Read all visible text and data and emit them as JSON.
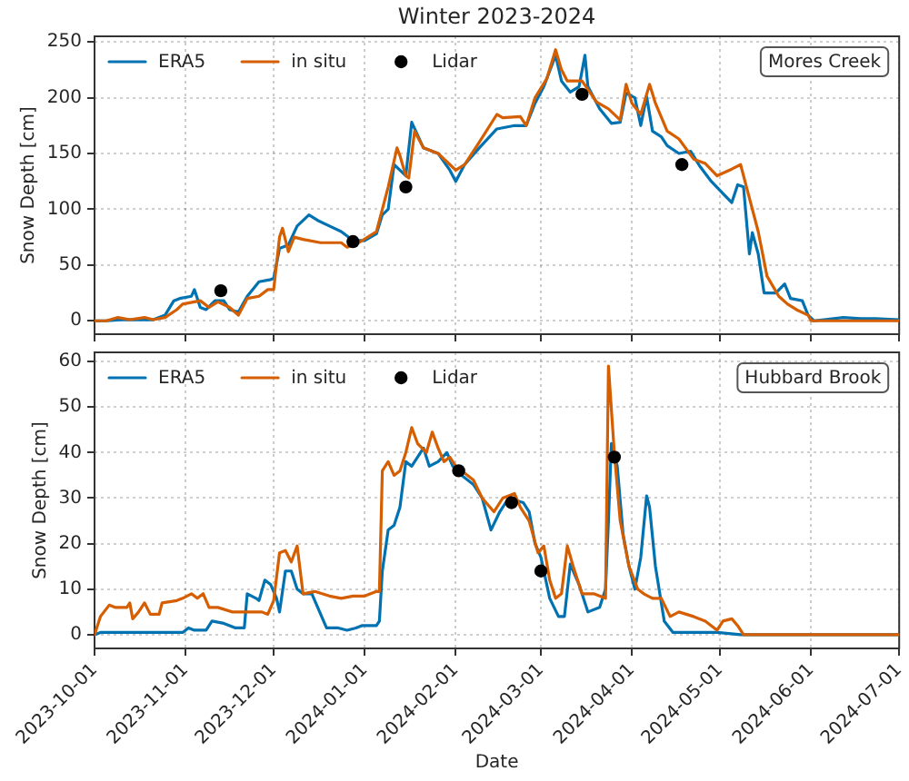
{
  "chart_data": [
    {
      "type": "line",
      "title": "Winter 2023-2024",
      "ylabel": "Snow Depth [cm]",
      "xlim": [
        "2023-10-01",
        "2024-07-01"
      ],
      "xticks": [
        "2023-10-01",
        "2023-11-01",
        "2023-12-01",
        "2024-01-01",
        "2024-02-01",
        "2024-03-01",
        "2024-04-01",
        "2024-05-01",
        "2024-06-01",
        "2024-07-01"
      ],
      "ylim": [
        -12,
        255
      ],
      "yticks": [
        0,
        50,
        100,
        150,
        200,
        250
      ],
      "grid": true,
      "legend": "top left",
      "tick_labels": "y",
      "marker": "none",
      "line_style": "solid",
      "annotations": [
        "Mores Creek"
      ],
      "series": [
        {
          "name": "ERA5",
          "color": "#0072b2",
          "x": [
            "2023-10-01",
            "2023-10-05",
            "2023-10-10",
            "2023-10-21",
            "2023-10-25",
            "2023-10-28",
            "2023-10-30",
            "2023-11-03",
            "2023-11-04",
            "2023-11-06",
            "2023-11-08",
            "2023-11-11",
            "2023-11-14",
            "2023-11-16",
            "2023-11-19",
            "2023-11-22",
            "2023-11-26",
            "2023-11-30",
            "2023-12-01",
            "2023-12-03",
            "2023-12-06",
            "2023-12-09",
            "2023-12-13",
            "2023-12-16",
            "2023-12-20",
            "2023-12-24",
            "2023-12-28",
            "2024-01-01",
            "2024-01-05",
            "2024-01-07",
            "2024-01-09",
            "2024-01-11",
            "2024-01-13",
            "2024-01-15",
            "2024-01-17",
            "2024-01-21",
            "2024-01-26",
            "2024-01-30",
            "2024-02-01",
            "2024-02-04",
            "2024-02-09",
            "2024-02-15",
            "2024-02-21",
            "2024-02-25",
            "2024-02-28",
            "2024-03-02",
            "2024-03-06",
            "2024-03-08",
            "2024-03-11",
            "2024-03-14",
            "2024-03-16",
            "2024-03-17",
            "2024-03-21",
            "2024-03-25",
            "2024-03-28",
            "2024-03-30",
            "2024-04-02",
            "2024-04-04",
            "2024-04-06",
            "2024-04-08",
            "2024-04-11",
            "2024-04-13",
            "2024-04-17",
            "2024-04-21",
            "2024-04-24",
            "2024-04-28",
            "2024-05-02",
            "2024-05-05",
            "2024-05-07",
            "2024-05-09",
            "2024-05-11",
            "2024-05-12",
            "2024-05-14",
            "2024-05-16",
            "2024-05-20",
            "2024-05-23",
            "2024-05-25",
            "2024-05-29",
            "2024-05-31",
            "2024-06-02",
            "2024-06-12",
            "2024-06-18",
            "2024-06-23",
            "2024-07-01"
          ],
          "values": [
            0,
            0,
            1,
            1,
            5,
            18,
            20,
            22,
            28,
            12,
            10,
            18,
            18,
            10,
            8,
            22,
            35,
            37,
            38,
            65,
            68,
            85,
            95,
            90,
            85,
            80,
            72,
            72,
            78,
            95,
            100,
            140,
            135,
            130,
            178,
            155,
            150,
            135,
            125,
            140,
            155,
            172,
            175,
            175,
            195,
            210,
            238,
            215,
            205,
            210,
            238,
            210,
            190,
            177,
            178,
            204,
            200,
            175,
            201,
            170,
            165,
            157,
            150,
            152,
            139,
            125,
            114,
            106,
            122,
            120,
            60,
            79,
            60,
            25,
            25,
            33,
            20,
            18,
            5,
            0,
            3,
            2,
            2,
            1
          ]
        },
        {
          "name": "in situ",
          "color": "#d55e00",
          "x": [
            "2023-10-01",
            "2023-10-05",
            "2023-10-09",
            "2023-10-13",
            "2023-10-18",
            "2023-10-21",
            "2023-10-25",
            "2023-10-29",
            "2023-10-31",
            "2023-11-06",
            "2023-11-09",
            "2023-11-12",
            "2023-11-16",
            "2023-11-19",
            "2023-11-22",
            "2023-11-26",
            "2023-11-29",
            "2023-12-01",
            "2023-12-03",
            "2023-12-04",
            "2023-12-06",
            "2023-12-08",
            "2023-12-11",
            "2023-12-17",
            "2023-12-24",
            "2023-12-26",
            "2023-12-30",
            "2024-01-05",
            "2024-01-09",
            "2024-01-12",
            "2024-01-13",
            "2024-01-15",
            "2024-01-16",
            "2024-01-18",
            "2024-01-21",
            "2024-01-26",
            "2024-01-30",
            "2024-02-01",
            "2024-02-04",
            "2024-02-09",
            "2024-02-15",
            "2024-02-17",
            "2024-02-23",
            "2024-02-25",
            "2024-02-28",
            "2024-03-03",
            "2024-03-06",
            "2024-03-08",
            "2024-03-10",
            "2024-03-15",
            "2024-03-20",
            "2024-03-24",
            "2024-03-28",
            "2024-03-30",
            "2024-04-01",
            "2024-04-04",
            "2024-04-07",
            "2024-04-09",
            "2024-04-13",
            "2024-04-17",
            "2024-04-22",
            "2024-04-26",
            "2024-04-30",
            "2024-05-05",
            "2024-05-08",
            "2024-05-10",
            "2024-05-14",
            "2024-05-17",
            "2024-05-21",
            "2024-05-24",
            "2024-05-27",
            "2024-05-31",
            "2024-06-01",
            "2024-07-01"
          ],
          "values": [
            0,
            0,
            3,
            1,
            3,
            1,
            3,
            10,
            15,
            18,
            12,
            17,
            12,
            5,
            20,
            22,
            28,
            28,
            75,
            83,
            62,
            75,
            73,
            70,
            70,
            66,
            70,
            80,
            120,
            155,
            148,
            130,
            128,
            170,
            155,
            150,
            140,
            135,
            140,
            160,
            185,
            182,
            183,
            175,
            200,
            217,
            243,
            225,
            215,
            215,
            196,
            190,
            180,
            212,
            195,
            185,
            212,
            195,
            170,
            163,
            145,
            141,
            130,
            136,
            140,
            120,
            80,
            40,
            22,
            15,
            10,
            5,
            0,
            0
          ]
        },
        {
          "name": "Lidar",
          "type": "scatter",
          "marker": "circle",
          "color": "#000000",
          "x": [
            "2023-11-13",
            "2023-12-28",
            "2024-01-15",
            "2024-03-15",
            "2024-04-18"
          ],
          "values": [
            27,
            71,
            120,
            203,
            140
          ]
        }
      ]
    },
    {
      "type": "line",
      "xlabel": "Date",
      "ylabel": "Snow Depth [cm]",
      "xlim": [
        "2023-10-01",
        "2024-07-01"
      ],
      "xticks": [
        "2023-10-01",
        "2023-11-01",
        "2023-12-01",
        "2024-01-01",
        "2024-02-01",
        "2024-03-01",
        "2024-04-01",
        "2024-05-01",
        "2024-06-01",
        "2024-07-01"
      ],
      "ylim": [
        -3,
        62
      ],
      "yticks": [
        0,
        10,
        20,
        30,
        40,
        50,
        60
      ],
      "grid": true,
      "legend": "top left",
      "marker": "none",
      "line_style": "solid",
      "annotations": [
        "Hubbard Brook"
      ],
      "series": [
        {
          "name": "ERA5",
          "color": "#0072b2",
          "x": [
            "2023-10-01",
            "2023-10-03",
            "2023-10-31",
            "2023-11-02",
            "2023-11-04",
            "2023-11-08",
            "2023-11-10",
            "2023-11-14",
            "2023-11-18",
            "2023-11-21",
            "2023-11-22",
            "2023-11-25",
            "2023-11-26",
            "2023-11-28",
            "2023-11-30",
            "2023-12-02",
            "2023-12-03",
            "2023-12-05",
            "2023-12-07",
            "2023-12-09",
            "2023-12-11",
            "2023-12-14",
            "2023-12-16",
            "2023-12-19",
            "2023-12-23",
            "2023-12-26",
            "2023-12-29",
            "2023-12-31",
            "2024-01-05",
            "2024-01-06",
            "2024-01-07",
            "2024-01-09",
            "2024-01-11",
            "2024-01-13",
            "2024-01-15",
            "2024-01-17",
            "2024-01-21",
            "2024-01-23",
            "2024-01-26",
            "2024-01-29",
            "2024-01-31",
            "2024-02-03",
            "2024-02-07",
            "2024-02-10",
            "2024-02-13",
            "2024-02-16",
            "2024-02-19",
            "2024-02-24",
            "2024-02-26",
            "2024-02-28",
            "2024-03-01",
            "2024-03-04",
            "2024-03-07",
            "2024-03-09",
            "2024-03-11",
            "2024-03-14",
            "2024-03-17",
            "2024-03-21",
            "2024-03-23",
            "2024-03-24",
            "2024-03-25",
            "2024-03-27",
            "2024-03-29",
            "2024-03-31",
            "2024-04-02",
            "2024-04-04",
            "2024-04-06",
            "2024-04-07",
            "2024-04-09",
            "2024-04-12",
            "2024-04-15",
            "2024-04-24",
            "2024-04-30",
            "2024-05-08",
            "2024-07-01"
          ],
          "values": [
            0,
            0.5,
            0.5,
            1.5,
            1,
            1,
            3,
            2.5,
            1.5,
            1.5,
            9,
            8,
            7.5,
            12,
            11,
            8,
            5,
            14,
            14,
            10,
            9,
            9,
            6,
            1.5,
            1.5,
            1,
            1.5,
            2,
            2,
            3,
            14,
            23,
            24,
            28,
            38,
            37,
            41,
            37,
            38,
            40,
            37,
            35,
            33,
            30,
            23,
            27,
            30,
            29,
            27,
            20,
            17,
            8,
            4,
            4,
            15.5,
            11,
            5,
            6,
            10,
            25,
            42,
            37,
            22,
            15,
            10,
            17,
            30.5,
            28,
            15,
            3,
            0.5,
            0.5,
            0.5,
            0,
            0
          ]
        },
        {
          "name": "in situ",
          "color": "#d55e00",
          "x": [
            "2023-10-01",
            "2023-10-03",
            "2023-10-06",
            "2023-10-08",
            "2023-10-12",
            "2023-10-13",
            "2023-10-14",
            "2023-10-16",
            "2023-10-18",
            "2023-10-20",
            "2023-10-23",
            "2023-10-24",
            "2023-10-29",
            "2023-10-31",
            "2023-11-03",
            "2023-11-05",
            "2023-11-07",
            "2023-11-09",
            "2023-11-12",
            "2023-11-17",
            "2023-11-21",
            "2023-11-27",
            "2023-11-29",
            "2023-12-01",
            "2023-12-03",
            "2023-12-05",
            "2023-12-07",
            "2023-12-09",
            "2023-12-11",
            "2023-12-15",
            "2023-12-20",
            "2023-12-24",
            "2023-12-28",
            "2024-01-01",
            "2024-01-05",
            "2024-01-06",
            "2024-01-07",
            "2024-01-09",
            "2024-01-11",
            "2024-01-13",
            "2024-01-15",
            "2024-01-17",
            "2024-01-19",
            "2024-01-22",
            "2024-01-24",
            "2024-01-26",
            "2024-01-28",
            "2024-01-30",
            "2024-02-01",
            "2024-02-03",
            "2024-02-07",
            "2024-02-10",
            "2024-02-14",
            "2024-02-17",
            "2024-02-21",
            "2024-02-23",
            "2024-02-26",
            "2024-02-29",
            "2024-03-02",
            "2024-03-04",
            "2024-03-06",
            "2024-03-08",
            "2024-03-10",
            "2024-03-12",
            "2024-03-15",
            "2024-03-19",
            "2024-03-23",
            "2024-03-24",
            "2024-03-26",
            "2024-03-28",
            "2024-03-31",
            "2024-04-03",
            "2024-04-05",
            "2024-04-08",
            "2024-04-11",
            "2024-04-14",
            "2024-04-17",
            "2024-04-22",
            "2024-04-26",
            "2024-04-30",
            "2024-05-02",
            "2024-05-05",
            "2024-05-07",
            "2024-05-09",
            "2024-07-01"
          ],
          "values": [
            0,
            4,
            6.5,
            6,
            6,
            7,
            3.5,
            5,
            7,
            4.5,
            4.5,
            7,
            7.5,
            8,
            9,
            8,
            9,
            6,
            6,
            5,
            5,
            5,
            4.5,
            7.5,
            18,
            18.5,
            16,
            19.5,
            9,
            9.5,
            8.5,
            8,
            8.5,
            8.5,
            9.5,
            9.5,
            36,
            38,
            35,
            36,
            40,
            45.5,
            42,
            40,
            44.5,
            41,
            38,
            39,
            37,
            36,
            34,
            30,
            27,
            30,
            31,
            28,
            25,
            18,
            19.5,
            12,
            8,
            9,
            19.5,
            15,
            9,
            9,
            8,
            59,
            40,
            25,
            15,
            10,
            9,
            8,
            8,
            4,
            5,
            4,
            3,
            1,
            3,
            3.5,
            2,
            0,
            0
          ]
        },
        {
          "name": "Lidar",
          "type": "scatter",
          "marker": "circle",
          "color": "#000000",
          "x": [
            "2024-02-02",
            "2024-02-20",
            "2024-03-01",
            "2024-03-26"
          ],
          "values": [
            36,
            29,
            14,
            39
          ]
        }
      ]
    }
  ]
}
